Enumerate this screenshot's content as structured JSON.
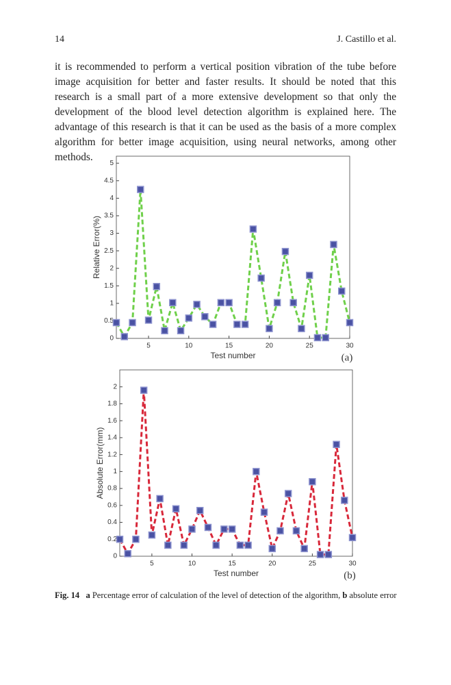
{
  "header": {
    "page_number": "14",
    "authors": "J. Castillo et al."
  },
  "paragraph": "it is recommended to perform a vertical position vibration of the tube before image acquisition for better and faster results. It should be noted that this research is a small part of a more extensive development so that only the development of the blood level detection algorithm is explained here. The advantage of this research is that it can be used as the basis of a more complex algorithm for better image acquisition, using neural networks, among other methods.",
  "chart_data": [
    {
      "type": "line",
      "panel": "(a)",
      "xlabel": "Test number",
      "ylabel": "Relative Error(%)",
      "x": [
        1,
        2,
        3,
        4,
        5,
        6,
        7,
        8,
        9,
        10,
        11,
        12,
        13,
        14,
        15,
        16,
        17,
        18,
        19,
        20,
        21,
        22,
        23,
        24,
        25,
        26,
        27,
        28,
        29,
        30
      ],
      "values": [
        0.45,
        0.05,
        0.45,
        4.25,
        0.52,
        1.48,
        0.22,
        1.02,
        0.22,
        0.58,
        0.97,
        0.62,
        0.4,
        1.02,
        1.02,
        0.4,
        0.4,
        3.12,
        1.72,
        0.28,
        1.02,
        2.48,
        1.02,
        0.28,
        1.8,
        0.02,
        0.02,
        2.68,
        1.35,
        0.45
      ],
      "color": "#6fd04a",
      "marker_color": "#4a52a3",
      "xlim": [
        1,
        30
      ],
      "xticks": [
        5,
        10,
        15,
        20,
        25,
        30
      ],
      "ylim": [
        0,
        5.2
      ],
      "yticks": [
        0,
        0.5,
        1,
        1.5,
        2,
        2.5,
        3,
        3.5,
        4,
        4.5,
        5
      ]
    },
    {
      "type": "line",
      "panel": "(b)",
      "xlabel": "Test number",
      "ylabel": "Absolute Error(mm)",
      "x": [
        1,
        2,
        3,
        4,
        5,
        6,
        7,
        8,
        9,
        10,
        11,
        12,
        13,
        14,
        15,
        16,
        17,
        18,
        19,
        20,
        21,
        22,
        23,
        24,
        25,
        26,
        27,
        28,
        29,
        30
      ],
      "values": [
        0.2,
        0.03,
        0.2,
        1.96,
        0.25,
        0.68,
        0.13,
        0.56,
        0.13,
        0.32,
        0.54,
        0.34,
        0.13,
        0.32,
        0.32,
        0.13,
        0.13,
        1.0,
        0.52,
        0.09,
        0.3,
        0.74,
        0.3,
        0.09,
        0.88,
        0.02,
        0.02,
        1.32,
        0.66,
        0.22
      ],
      "color": "#d8283a",
      "marker_color": "#4a52a3",
      "xlim": [
        1,
        30
      ],
      "xticks": [
        5,
        10,
        15,
        20,
        25,
        30
      ],
      "ylim": [
        0,
        2.2
      ],
      "yticks": [
        0,
        0.2,
        0.4,
        0.6,
        0.8,
        1,
        1.2,
        1.4,
        1.6,
        1.8,
        2
      ]
    }
  ],
  "caption": {
    "figure": "Fig. 14",
    "a_label": "a",
    "a_text": "Percentage error of calculation of the level of detection of the algorithm,",
    "b_label": "b",
    "b_text": "absolute error"
  }
}
